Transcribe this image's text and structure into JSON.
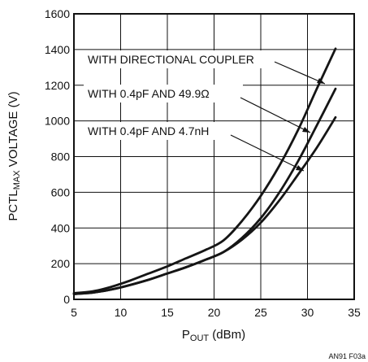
{
  "chart_data": {
    "type": "line",
    "xlabel_main": "P",
    "xlabel_sub": "OUT",
    "xlabel_tail": " (dBm)",
    "ylabel_main": "PCTL",
    "ylabel_sub": "MAX",
    "ylabel_tail": " VOLTAGE (V)",
    "xlim": [
      5,
      35
    ],
    "ylim": [
      0,
      1600
    ],
    "x_ticks": [
      5,
      10,
      15,
      20,
      25,
      30,
      35
    ],
    "y_ticks": [
      0,
      200,
      400,
      600,
      800,
      1000,
      1200,
      1400,
      1600
    ],
    "grid": true,
    "series": [
      {
        "name": "WITH DIRECTIONAL COUPLER",
        "x": [
          5,
          7,
          9,
          11,
          13,
          15,
          17,
          19,
          21,
          23,
          25,
          27,
          29,
          31,
          33
        ],
        "y": [
          35,
          45,
          70,
          105,
          145,
          185,
          230,
          275,
          330,
          440,
          580,
          750,
          950,
          1180,
          1405
        ]
      },
      {
        "name": "WITH 0.4pF AND 49.9Ω",
        "x": [
          5,
          7,
          9,
          11,
          13,
          15,
          17,
          19,
          21,
          23,
          25,
          27,
          29,
          31,
          33
        ],
        "y": [
          30,
          38,
          55,
          80,
          110,
          145,
          180,
          220,
          265,
          345,
          455,
          600,
          775,
          975,
          1180
        ]
      },
      {
        "name": "WITH 0.4pF AND 4.7nH",
        "x": [
          5,
          7,
          9,
          11,
          13,
          15,
          17,
          19,
          21,
          23,
          25,
          27,
          29,
          31,
          33
        ],
        "y": [
          30,
          38,
          55,
          80,
          110,
          145,
          180,
          220,
          265,
          335,
          430,
          555,
          700,
          850,
          1020
        ]
      }
    ],
    "annotations": [
      "WITH DIRECTIONAL COUPLER",
      "WITH 0.4pF AND 49.9Ω",
      "WITH 0.4pF AND 4.7nH"
    ],
    "figure_code": "AN91 F03a"
  }
}
